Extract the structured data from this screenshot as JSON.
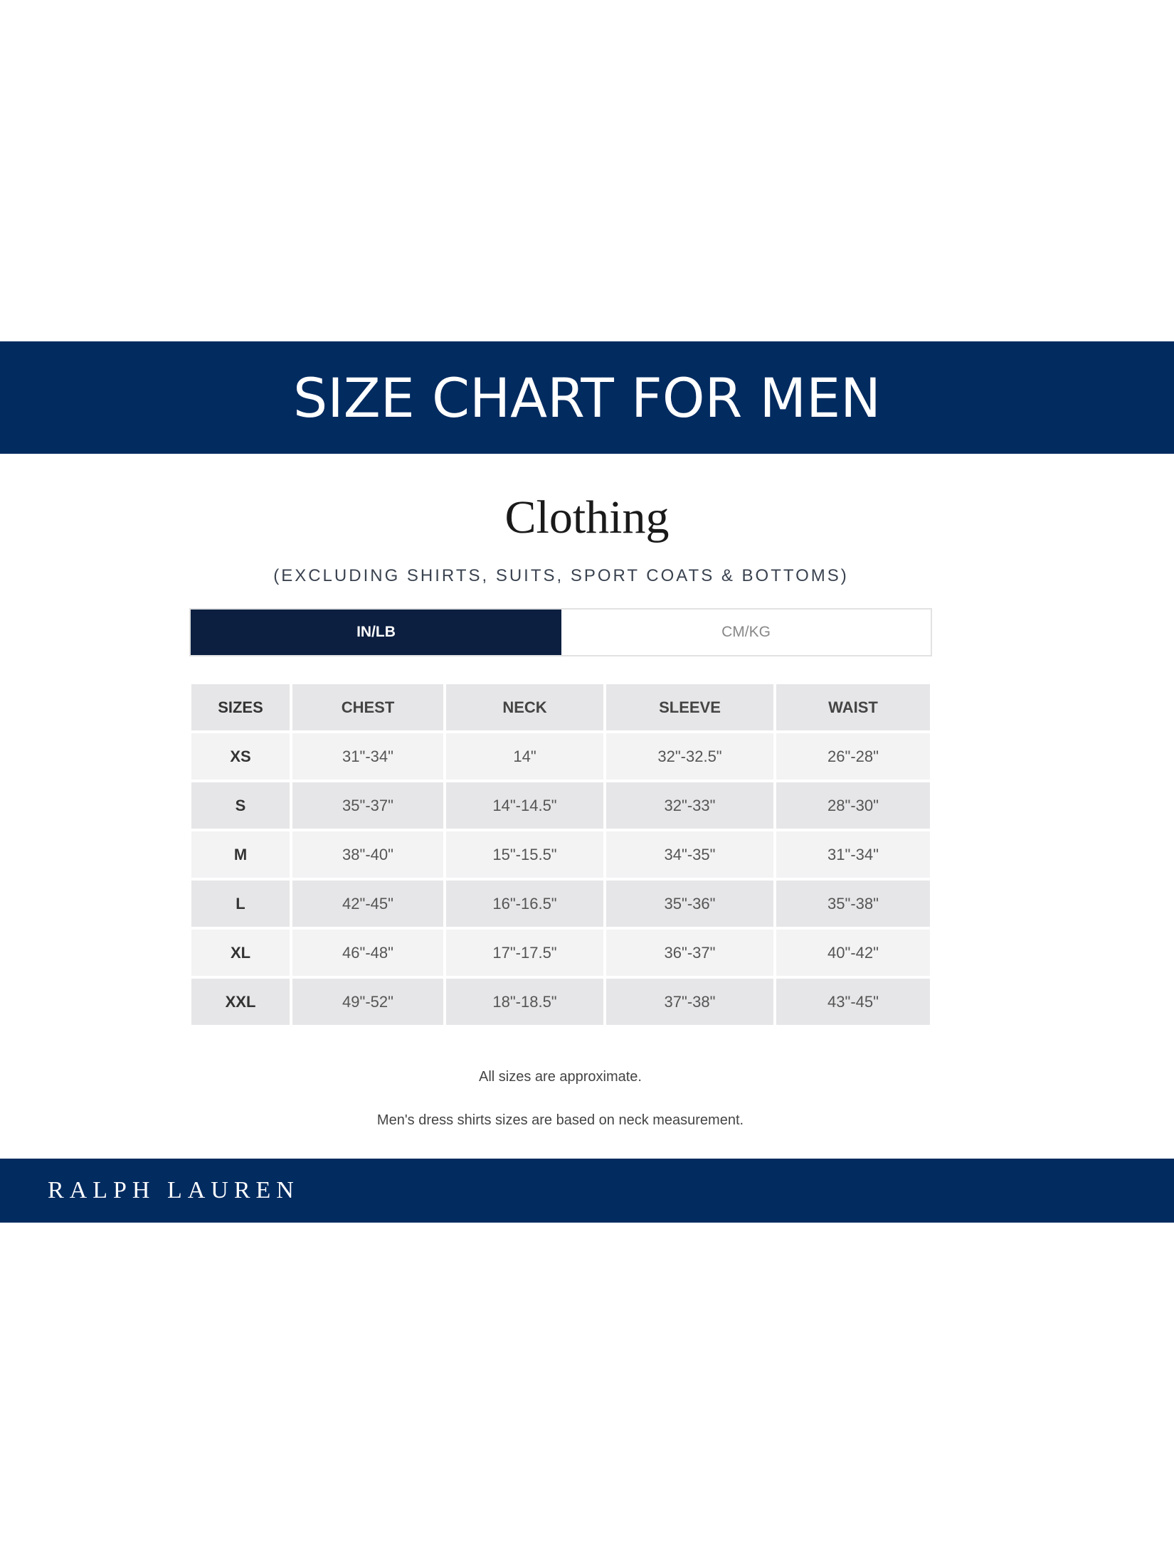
{
  "banner": {
    "title": "SIZE CHART FOR MEN"
  },
  "section": {
    "title": "Clothing",
    "subtitle": "(EXCLUDING SHIRTS, SUITS, SPORT COATS & BOTTOMS)"
  },
  "units_toggle": {
    "options": [
      "IN/LB",
      "CM/KG"
    ],
    "selected": "IN/LB"
  },
  "table": {
    "headers": [
      "SIZES",
      "CHEST",
      "NECK",
      "SLEEVE",
      "WAIST"
    ],
    "rows": [
      [
        "XS",
        "31\"-34\"",
        "14\"",
        "32\"-32.5\"",
        "26\"-28\""
      ],
      [
        "S",
        "35\"-37\"",
        "14\"-14.5\"",
        "32\"-33\"",
        "28\"-30\""
      ],
      [
        "M",
        "38\"-40\"",
        "15\"-15.5\"",
        "34\"-35\"",
        "31\"-34\""
      ],
      [
        "L",
        "42\"-45\"",
        "16\"-16.5\"",
        "35\"-36\"",
        "35\"-38\""
      ],
      [
        "XL",
        "46\"-48\"",
        "17\"-17.5\"",
        "36\"-37\"",
        "40\"-42\""
      ],
      [
        "XXL",
        "49\"-52\"",
        "18\"-18.5\"",
        "37\"-38\"",
        "43\"-45\""
      ]
    ]
  },
  "notes": [
    "All sizes are approximate.",
    "Men's dress shirts sizes are based on neck measurement."
  ],
  "footer": {
    "logo": "RALPH LAUREN"
  },
  "colors": {
    "brand_navy": "#022b60",
    "toggle_active": "#0c1f40",
    "row_dark": "#e6e6e8",
    "row_light": "#f3f3f4"
  }
}
